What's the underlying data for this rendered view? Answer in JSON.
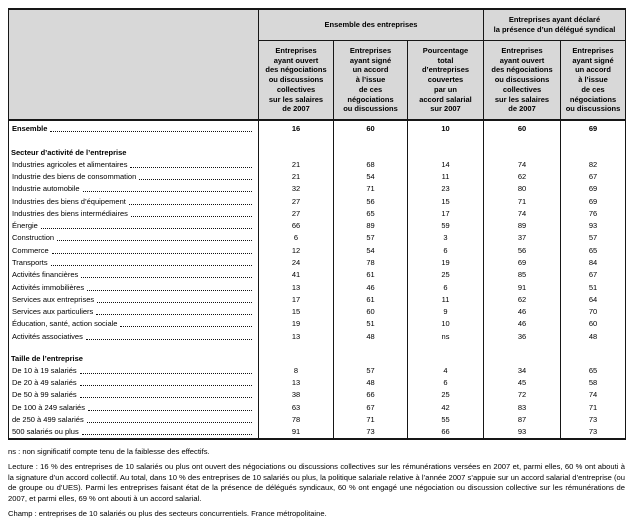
{
  "table": {
    "col_groups": [
      {
        "label": "Ensemble des entreprises",
        "span": 3
      },
      {
        "label": "Entreprises ayant déclaré\nla présence d’un délégué syndical",
        "span": 2
      }
    ],
    "columns": [
      "Entreprises\nayant ouvert\ndes négociations\nou discussions\ncollectives\nsur les salaires\nde 2007",
      "Entreprises\nayant signé\nun accord\nà l’issue\nde ces\nnégociations\nou discussions",
      "Pourcentage\ntotal\nd’entreprises\ncouvertes\npar un\naccord salarial\nsur 2007",
      "Entreprises\nayant ouvert\ndes négociations\nou discussions\ncollectives\nsur les salaires\nde 2007",
      "Entreprises\nayant signé\nun accord\nà l’issue\nde ces\nnégociations\nou discussions"
    ],
    "rows": [
      {
        "type": "data",
        "bold": true,
        "label": "Ensemble",
        "values": [
          16,
          60,
          10,
          60,
          69
        ]
      },
      {
        "type": "spacer"
      },
      {
        "type": "section",
        "label": "Secteur d’activité de l’entreprise"
      },
      {
        "type": "data",
        "label": "Industries agricoles et alimentaires",
        "values": [
          21,
          68,
          14,
          74,
          82
        ]
      },
      {
        "type": "data",
        "label": "Industrie des biens de consommation",
        "values": [
          21,
          54,
          11,
          62,
          67
        ]
      },
      {
        "type": "data",
        "label": "Industrie automobile",
        "values": [
          32,
          71,
          23,
          80,
          69
        ]
      },
      {
        "type": "data",
        "label": "Industries des biens d’équipement",
        "values": [
          27,
          56,
          15,
          71,
          69
        ]
      },
      {
        "type": "data",
        "label": "Industries des biens intermédiaires",
        "values": [
          27,
          65,
          17,
          74,
          76
        ]
      },
      {
        "type": "data",
        "label": "Énergie",
        "values": [
          66,
          89,
          59,
          89,
          93
        ]
      },
      {
        "type": "data",
        "label": "Construction",
        "values": [
          6,
          57,
          3,
          37,
          57
        ]
      },
      {
        "type": "data",
        "label": "Commerce",
        "values": [
          12,
          54,
          6,
          56,
          65
        ]
      },
      {
        "type": "data",
        "label": "Transports",
        "values": [
          24,
          78,
          19,
          69,
          84
        ]
      },
      {
        "type": "data",
        "label": "Activités financières",
        "values": [
          41,
          61,
          25,
          85,
          67
        ]
      },
      {
        "type": "data",
        "label": "Activités immobilières",
        "values": [
          13,
          46,
          6,
          91,
          51
        ]
      },
      {
        "type": "data",
        "label": "Services aux entreprises",
        "values": [
          17,
          61,
          11,
          62,
          64
        ]
      },
      {
        "type": "data",
        "label": "Services aux particuliers",
        "values": [
          15,
          60,
          9,
          46,
          70
        ]
      },
      {
        "type": "data",
        "label": "Éducation, santé, action sociale",
        "values": [
          19,
          51,
          10,
          46,
          60
        ]
      },
      {
        "type": "data",
        "label": "Activités associatives",
        "values": [
          13,
          48,
          "ns",
          36,
          48
        ]
      },
      {
        "type": "spacer"
      },
      {
        "type": "section",
        "label": "Taille de l’entreprise"
      },
      {
        "type": "data",
        "label": "De 10 à 19 salariés",
        "values": [
          8,
          57,
          4,
          34,
          65
        ]
      },
      {
        "type": "data",
        "label": "De 20 à 49 salariés",
        "values": [
          13,
          48,
          6,
          45,
          58
        ]
      },
      {
        "type": "data",
        "label": "De 50 à 99 salariés",
        "values": [
          38,
          66,
          25,
          72,
          74
        ]
      },
      {
        "type": "data",
        "label": "De 100 à 249 salariés",
        "values": [
          63,
          67,
          42,
          83,
          71
        ]
      },
      {
        "type": "data",
        "label": "de 250 à 499 salariés",
        "values": [
          78,
          71,
          55,
          87,
          73
        ]
      },
      {
        "type": "data",
        "label": "500 salariés ou plus",
        "values": [
          91,
          73,
          66,
          93,
          73
        ]
      }
    ]
  },
  "notes": {
    "ns": "ns : non significatif compte tenu de la faiblesse des effectifs.",
    "lecture": "Lecture : 16 % des entreprises de 10 salariés ou plus ont ouvert des négociations ou discussions collectives sur les rémunérations versées en 2007 et, parmi elles, 60 % ont abouti à la signature d’un accord collectif. Au total, dans 10 % des entreprises de 10 salariés ou plus, la politique salariale relative à l’année 2007 s’appuie sur un accord salarial d’entreprise (ou de groupe ou d’UES). Parmi les entreprises faisant état de la présence de délégués syndicaux, 60 % ont engagé une négociation ou discussion collective sur les rémunérations de 2007, et parmi elles, 69 % ont abouti à un accord salarial.",
    "champ": "Champ : entreprises de 10 salariés ou plus des secteurs concurrentiels. France métropolitaine.",
    "colors": {
      "header_bg": "#d8d8d8",
      "border": "#161616"
    }
  }
}
